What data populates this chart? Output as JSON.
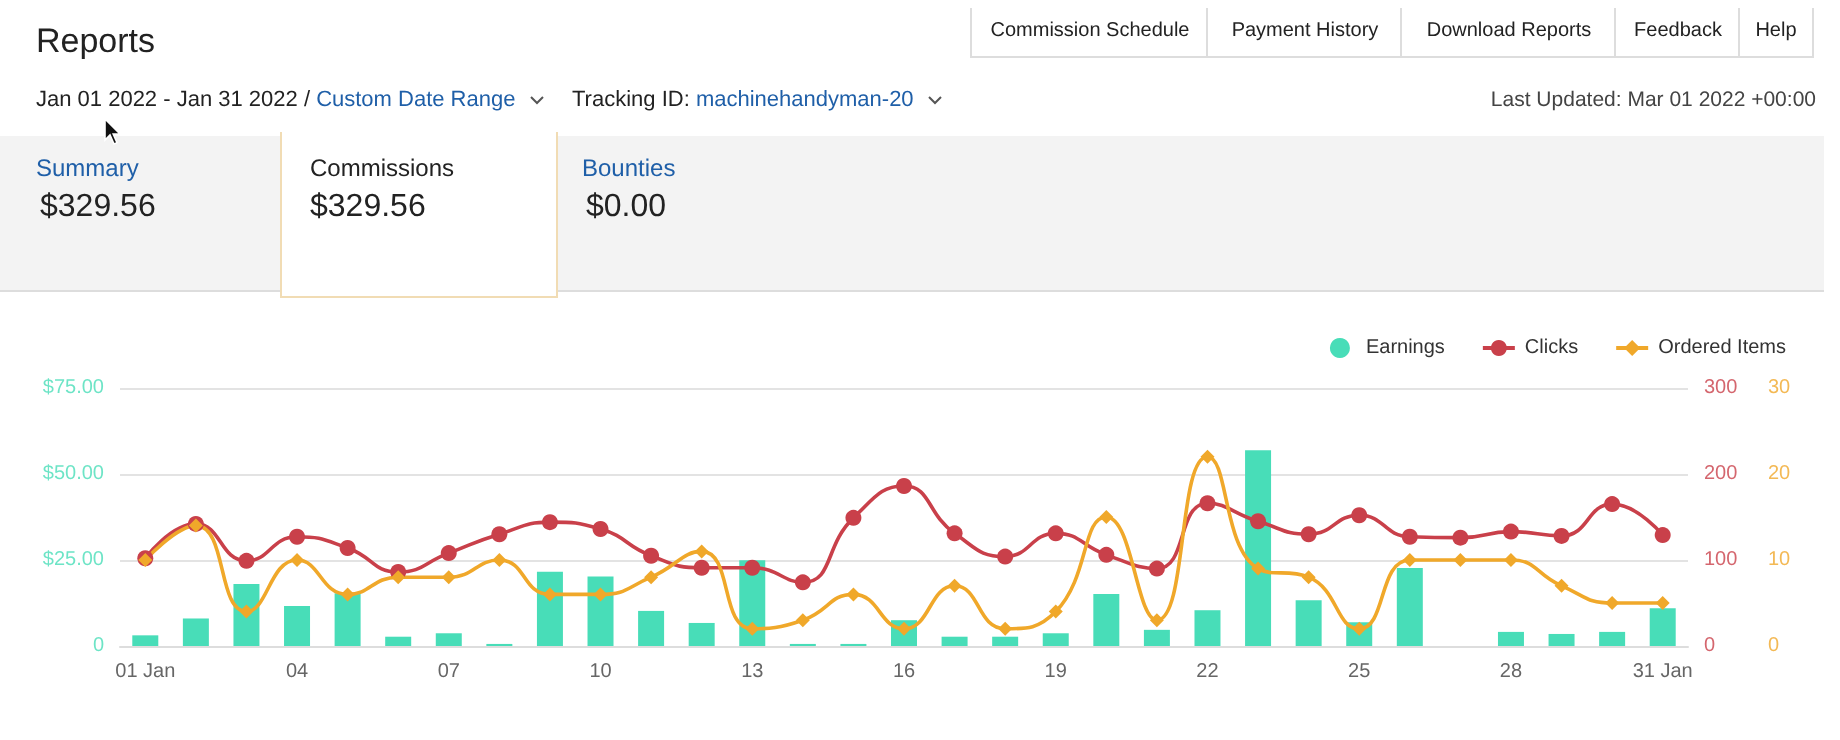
{
  "chart_data": {
    "type": "bar",
    "title": "Reports",
    "annotations": [
      "Jan 01 2022 - Jan 31 2022 / ",
      "Custom Date Range",
      "Tracking ID: ",
      "machinehandyman-20",
      "Last Updated: Mar 01 2022 +00:00",
      "Commission Schedule",
      "Payment History",
      "Download Reports",
      "Feedback",
      "Help",
      "Summary",
      "$329.56",
      "Commissions",
      "$329.56",
      "Bounties",
      "$0.00"
    ],
    "categories": [
      "01 Jan",
      null,
      null,
      "04",
      null,
      null,
      "07",
      null,
      null,
      "10",
      null,
      null,
      "13",
      null,
      null,
      "16",
      null,
      null,
      "19",
      null,
      null,
      "22",
      null,
      null,
      "25",
      null,
      null,
      "28",
      null,
      null,
      "31 Jan"
    ],
    "series": [
      {
        "name": "Earnings",
        "color": "#48ddb8",
        "values": [
          3.1,
          8,
          18,
          11.6,
          15.3,
          2.7,
          3.7,
          0.6,
          21.6,
          20.2,
          10.2,
          6.7,
          24.9,
          0.6,
          0.6,
          7.5,
          2.7,
          2.7,
          3.7,
          15.1,
          4.7,
          10.4,
          56.9,
          13.3,
          6.9,
          22.7,
          0,
          4.1,
          3.5,
          4.1,
          11
        ]
      },
      {
        "name": "Clicks",
        "type": "line",
        "axis": "y2",
        "marker": "circle",
        "color": "#c9404a",
        "values": [
          102,
          142,
          99,
          127,
          114,
          86,
          108,
          130,
          144,
          136,
          105,
          91,
          91,
          74,
          149,
          186,
          131,
          104,
          131,
          106,
          90,
          166,
          145,
          130,
          152,
          127,
          126,
          133,
          128,
          165,
          129
        ]
      },
      {
        "name": "Ordered Items",
        "type": "line",
        "axis": "y3",
        "marker": "diamond",
        "color": "#f0a82a",
        "values": [
          10,
          14,
          4,
          10,
          6,
          8,
          8,
          10,
          6,
          6,
          8,
          11,
          2,
          3,
          6,
          2,
          7,
          2,
          4,
          15,
          3,
          22,
          9,
          8,
          2,
          10,
          10,
          10,
          7,
          5,
          5
        ]
      }
    ],
    "ylim": [
      0,
      75
    ],
    "yticks": [
      {
        "value": 0,
        "label": "0"
      },
      {
        "value": 25,
        "label": "$25.00"
      },
      {
        "value": 50,
        "label": "$50.00"
      },
      {
        "value": 75,
        "label": "$75.00"
      }
    ],
    "y2lim": [
      0,
      300
    ],
    "y2ticks": [
      0,
      100,
      200,
      300
    ],
    "y3lim": [
      0,
      30
    ],
    "y3ticks": [
      0,
      10,
      20,
      30
    ],
    "grid": "y",
    "legend": "top right"
  }
}
